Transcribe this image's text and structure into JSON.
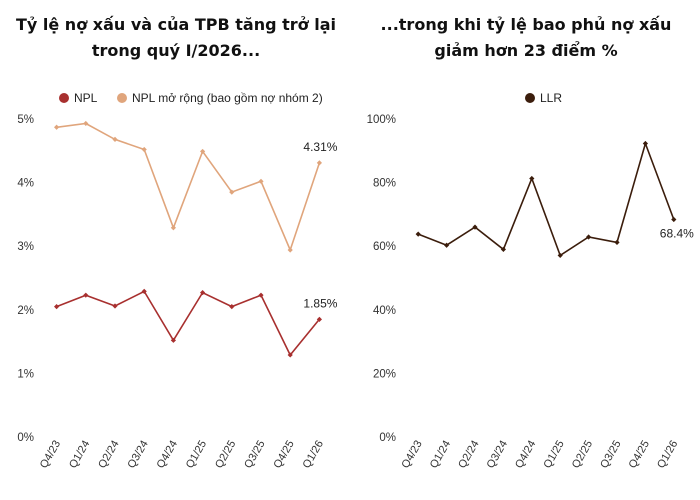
{
  "chart_data": [
    {
      "type": "line",
      "title_lines": [
        "Tỷ lệ nợ xấu và của TPB tăng trở lại",
        "trong quý I/2026..."
      ],
      "categories": [
        "Q4/23",
        "Q1/24",
        "Q2/24",
        "Q3/24",
        "Q4/24",
        "Q1/25",
        "Q2/25",
        "Q3/25",
        "Q4/25",
        "Q1/26"
      ],
      "ylim": [
        0,
        5
      ],
      "yticks": [
        0,
        1,
        2,
        3,
        4,
        5
      ],
      "ytick_labels": [
        "0%",
        "1%",
        "2%",
        "3%",
        "4%",
        "5%"
      ],
      "legend_position": "top",
      "series": [
        {
          "name": "NPL",
          "color": "#a8302f",
          "values": [
            2.05,
            2.23,
            2.06,
            2.29,
            1.52,
            2.27,
            2.05,
            2.23,
            1.29,
            1.85
          ],
          "end_label": "1.85%"
        },
        {
          "name": "NPL mở rộng (bao gồm nợ nhóm 2)",
          "color": "#e0a57c",
          "values": [
            4.87,
            4.93,
            4.68,
            4.52,
            3.29,
            4.49,
            3.85,
            4.02,
            2.94,
            4.31
          ],
          "end_label": "4.31%"
        }
      ]
    },
    {
      "type": "line",
      "title_lines": [
        "...trong khi tỷ lệ bao phủ nợ xấu",
        "giảm hơn 23 điểm %"
      ],
      "categories": [
        "Q4/23",
        "Q1/24",
        "Q2/24",
        "Q3/24",
        "Q4/24",
        "Q1/25",
        "Q2/25",
        "Q3/25",
        "Q4/25",
        "Q1/26"
      ],
      "ylim": [
        0,
        100
      ],
      "yticks": [
        0,
        20,
        40,
        60,
        80,
        100
      ],
      "ytick_labels": [
        "0%",
        "20%",
        "40%",
        "60%",
        "80%",
        "100%"
      ],
      "legend_position": "top",
      "series": [
        {
          "name": "LLR",
          "color": "#3b1d0c",
          "values": [
            63.8,
            60.3,
            66.0,
            59.0,
            81.3,
            57.1,
            62.9,
            61.2,
            92.3,
            68.4
          ],
          "end_label": "68.4%"
        }
      ]
    }
  ]
}
